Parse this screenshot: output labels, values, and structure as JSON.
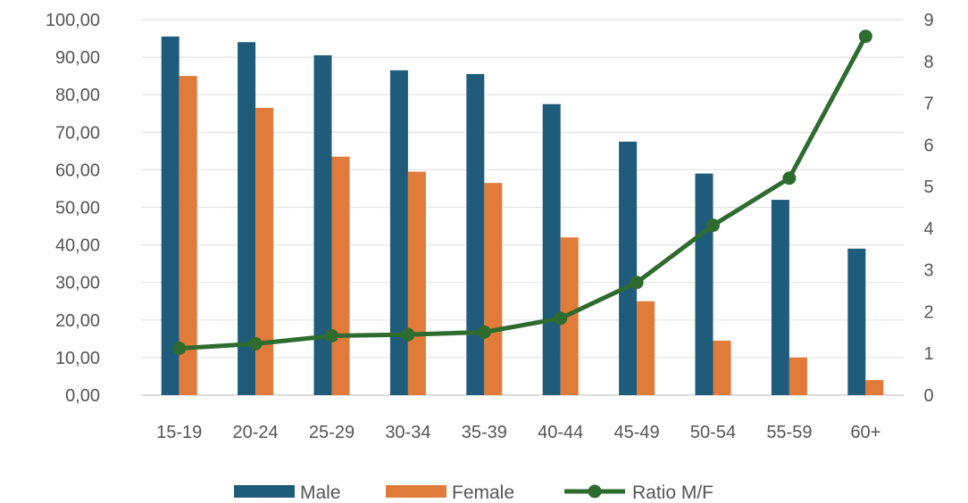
{
  "chart_data": {
    "type": "bar",
    "categories": [
      "15-19",
      "20-24",
      "25-29",
      "30-34",
      "35-39",
      "40-44",
      "45-49",
      "50-54",
      "55-59",
      "60+"
    ],
    "series": [
      {
        "name": "Male",
        "type": "bar",
        "axis": "left",
        "color": "#1f5c7c",
        "values": [
          95.5,
          94.0,
          90.5,
          86.5,
          85.5,
          77.5,
          67.5,
          59.0,
          52.0,
          39.0
        ]
      },
      {
        "name": "Female",
        "type": "bar",
        "axis": "left",
        "color": "#e07b39",
        "values": [
          85.0,
          76.5,
          63.5,
          59.5,
          56.5,
          42.0,
          25.0,
          14.5,
          10.0,
          4.0
        ]
      },
      {
        "name": "Ratio M/F",
        "type": "line",
        "axis": "right",
        "color": "#2e6b2f",
        "marker": "circle",
        "values": [
          1.12,
          1.23,
          1.42,
          1.45,
          1.51,
          1.84,
          2.7,
          4.07,
          5.2,
          8.6
        ]
      }
    ],
    "y_left": {
      "ylim": [
        0,
        100
      ],
      "ticks": [
        "0,00",
        "10,00",
        "20,00",
        "30,00",
        "40,00",
        "50,00",
        "60,00",
        "70,00",
        "80,00",
        "90,00",
        "100,00"
      ]
    },
    "y_right": {
      "ylim": [
        0,
        9
      ],
      "ticks": [
        "0",
        "1",
        "2",
        "3",
        "4",
        "5",
        "6",
        "7",
        "8",
        "9"
      ]
    },
    "grid": true,
    "legend_position": "bottom-center"
  }
}
